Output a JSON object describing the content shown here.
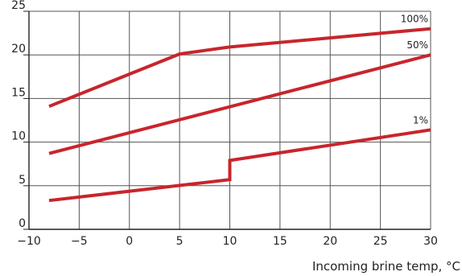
{
  "chart_data": {
    "type": "line",
    "xlabel": "Incoming brine temp, °C",
    "ylabel": "",
    "xlim": [
      -10,
      30
    ],
    "ylim": [
      0,
      25
    ],
    "x_ticks": [
      "−10",
      "−5",
      "0",
      "5",
      "10",
      "15",
      "20",
      "25",
      "30"
    ],
    "y_ticks": [
      "0",
      "5",
      "10",
      "15",
      "20",
      "25"
    ],
    "grid": true,
    "series_color": "#c8252c",
    "series": [
      {
        "name": "100%",
        "points": [
          [
            -8,
            14.1
          ],
          [
            5,
            20.1
          ],
          [
            10,
            20.9
          ],
          [
            30,
            23.0
          ]
        ]
      },
      {
        "name": "50%",
        "points": [
          [
            -8,
            8.7
          ],
          [
            30,
            20.0
          ]
        ]
      },
      {
        "name": "1%",
        "points": [
          [
            -8,
            3.3
          ],
          [
            10,
            5.7
          ],
          [
            10,
            7.9
          ],
          [
            30,
            11.4
          ]
        ]
      }
    ]
  }
}
